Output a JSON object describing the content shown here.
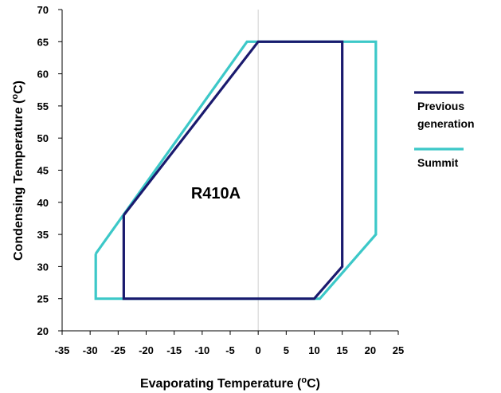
{
  "chart_data": {
    "type": "line",
    "xlabel": {
      "main": "Evaporating Temperature (",
      "sup": "o",
      "unit": "C)"
    },
    "ylabel": {
      "main": "Condensing Temperature (",
      "sup": "o",
      "unit": "C)"
    },
    "xlim": [
      -35,
      25
    ],
    "ylim": [
      20,
      70
    ],
    "xticks": [
      "-35",
      "-30",
      "-25",
      "-20",
      "-15",
      "-10",
      "-5",
      "0",
      "5",
      "10",
      "15",
      "20",
      "25"
    ],
    "yticks": [
      "20",
      "25",
      "30",
      "35",
      "40",
      "45",
      "50",
      "55",
      "60",
      "65",
      "70"
    ],
    "grid": "x-only",
    "annotation": "R410A",
    "legend_position": "right",
    "series": [
      {
        "name": "Previous generation",
        "name_lines": [
          "Previous",
          "generation"
        ],
        "color": "#1a1a6e",
        "x": [
          -24,
          -24,
          10,
          15,
          15,
          0,
          -24
        ],
        "y": [
          38,
          25,
          25,
          30,
          65,
          65,
          38
        ]
      },
      {
        "name": "Summit",
        "name_lines": [
          "Summit"
        ],
        "color": "#3cc8c8",
        "x": [
          -29,
          -29,
          11,
          21,
          21,
          -2,
          -29
        ],
        "y": [
          32,
          25,
          25,
          35,
          65,
          65,
          32
        ]
      }
    ]
  }
}
